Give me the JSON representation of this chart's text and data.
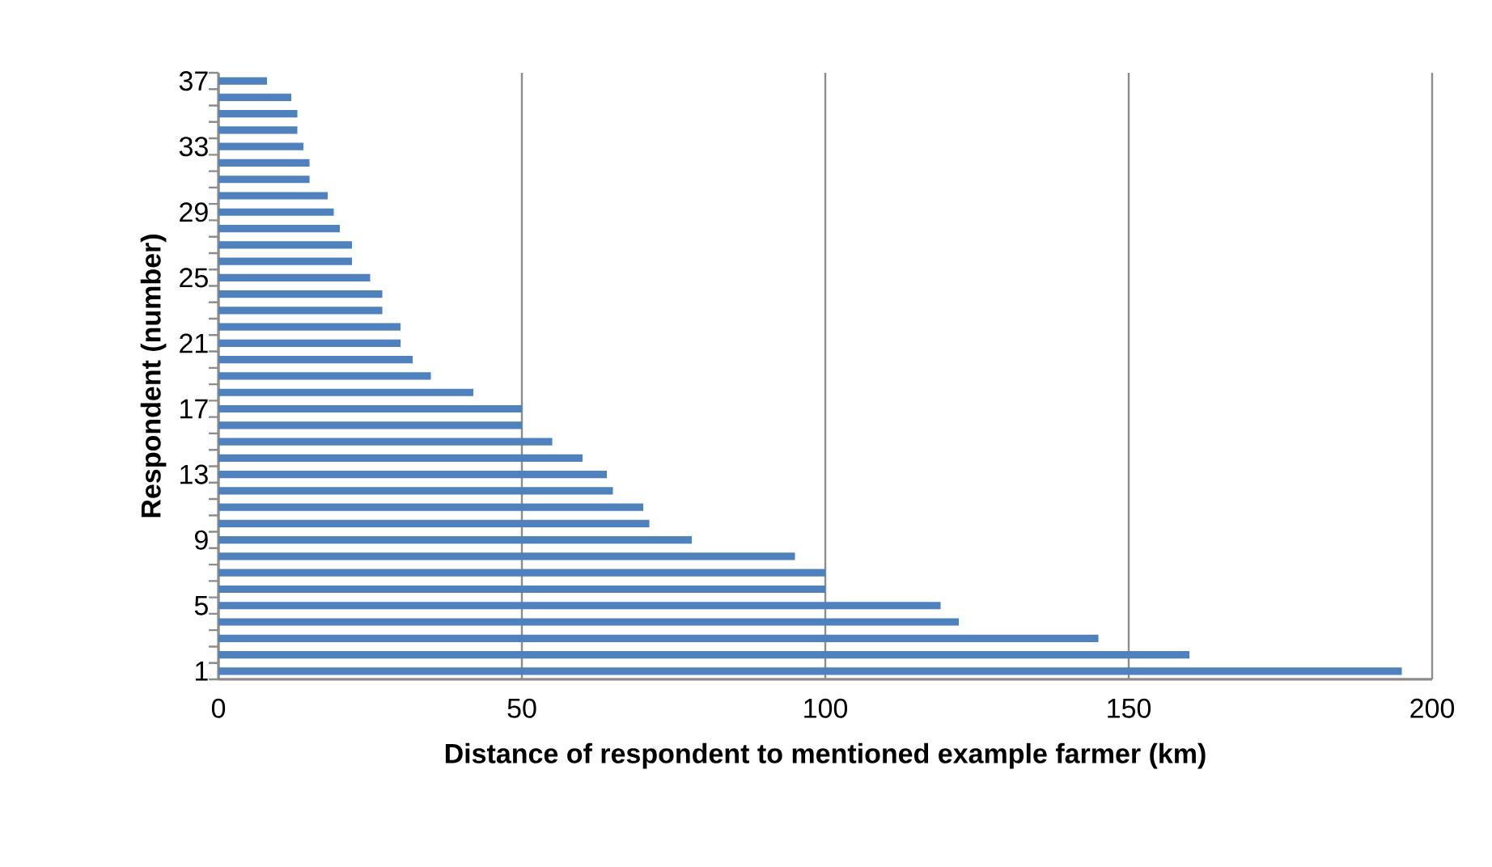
{
  "chart_data": {
    "type": "bar",
    "orientation": "horizontal",
    "xlabel": "Distance of respondent to mentioned example farmer (km)",
    "ylabel": "Respondent (number)",
    "categories": [
      "37",
      null,
      null,
      null,
      "33",
      null,
      null,
      null,
      "29",
      null,
      null,
      null,
      "25",
      null,
      null,
      null,
      "21",
      null,
      null,
      null,
      "17",
      null,
      null,
      null,
      "13",
      null,
      null,
      null,
      "9",
      null,
      null,
      null,
      "5",
      null,
      null,
      null,
      "1"
    ],
    "values": [
      8,
      12,
      13,
      13,
      14,
      15,
      15,
      18,
      19,
      20,
      22,
      22,
      25,
      27,
      27,
      30,
      30,
      32,
      35,
      42,
      50,
      50,
      55,
      60,
      64,
      65,
      70,
      71,
      78,
      95,
      100,
      100,
      119,
      122,
      145,
      160,
      195
    ],
    "color": "#4f81bd",
    "xlim": [
      0,
      200
    ],
    "xticks": [
      0,
      50,
      100,
      150,
      200
    ],
    "grid": "x"
  }
}
